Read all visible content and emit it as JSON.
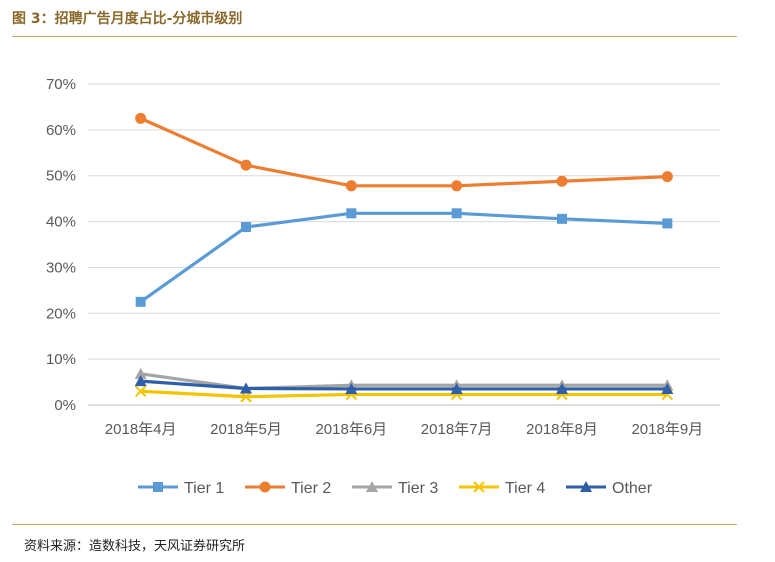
{
  "header": {
    "title": "图 3：招聘广告月度占比-分城市级别"
  },
  "footer": {
    "source": "资料来源：造数科技，天风证券研究所"
  },
  "chart_data": {
    "type": "line",
    "title": "",
    "xlabel": "",
    "ylabel": "",
    "categories": [
      "2018年4月",
      "2018年5月",
      "2018年6月",
      "2018年7月",
      "2018年8月",
      "2018年9月"
    ],
    "y_ticks": [
      "0%",
      "10%",
      "20%",
      "30%",
      "40%",
      "50%",
      "60%",
      "70%"
    ],
    "ylim": [
      0,
      70
    ],
    "grid": true,
    "legend_position": "bottom",
    "series": [
      {
        "name": "Tier 1",
        "color": "#5b9bd5",
        "marker": "square",
        "values": [
          22.5,
          38.8,
          41.8,
          41.8,
          40.6,
          39.6
        ]
      },
      {
        "name": "Tier 2",
        "color": "#ed7d31",
        "marker": "circle",
        "values": [
          62.5,
          52.3,
          47.8,
          47.8,
          48.8,
          49.8
        ]
      },
      {
        "name": "Tier 3",
        "color": "#a5a5a5",
        "marker": "triangle",
        "values": [
          6.8,
          3.6,
          4.3,
          4.3,
          4.3,
          4.3
        ]
      },
      {
        "name": "Tier 4",
        "color": "#f5c400",
        "marker": "x",
        "values": [
          3.0,
          1.8,
          2.3,
          2.3,
          2.3,
          2.3
        ]
      },
      {
        "name": "Other",
        "color": "#2e5fa8",
        "marker": "triangle",
        "values": [
          5.2,
          3.6,
          3.5,
          3.5,
          3.5,
          3.5
        ]
      }
    ]
  }
}
